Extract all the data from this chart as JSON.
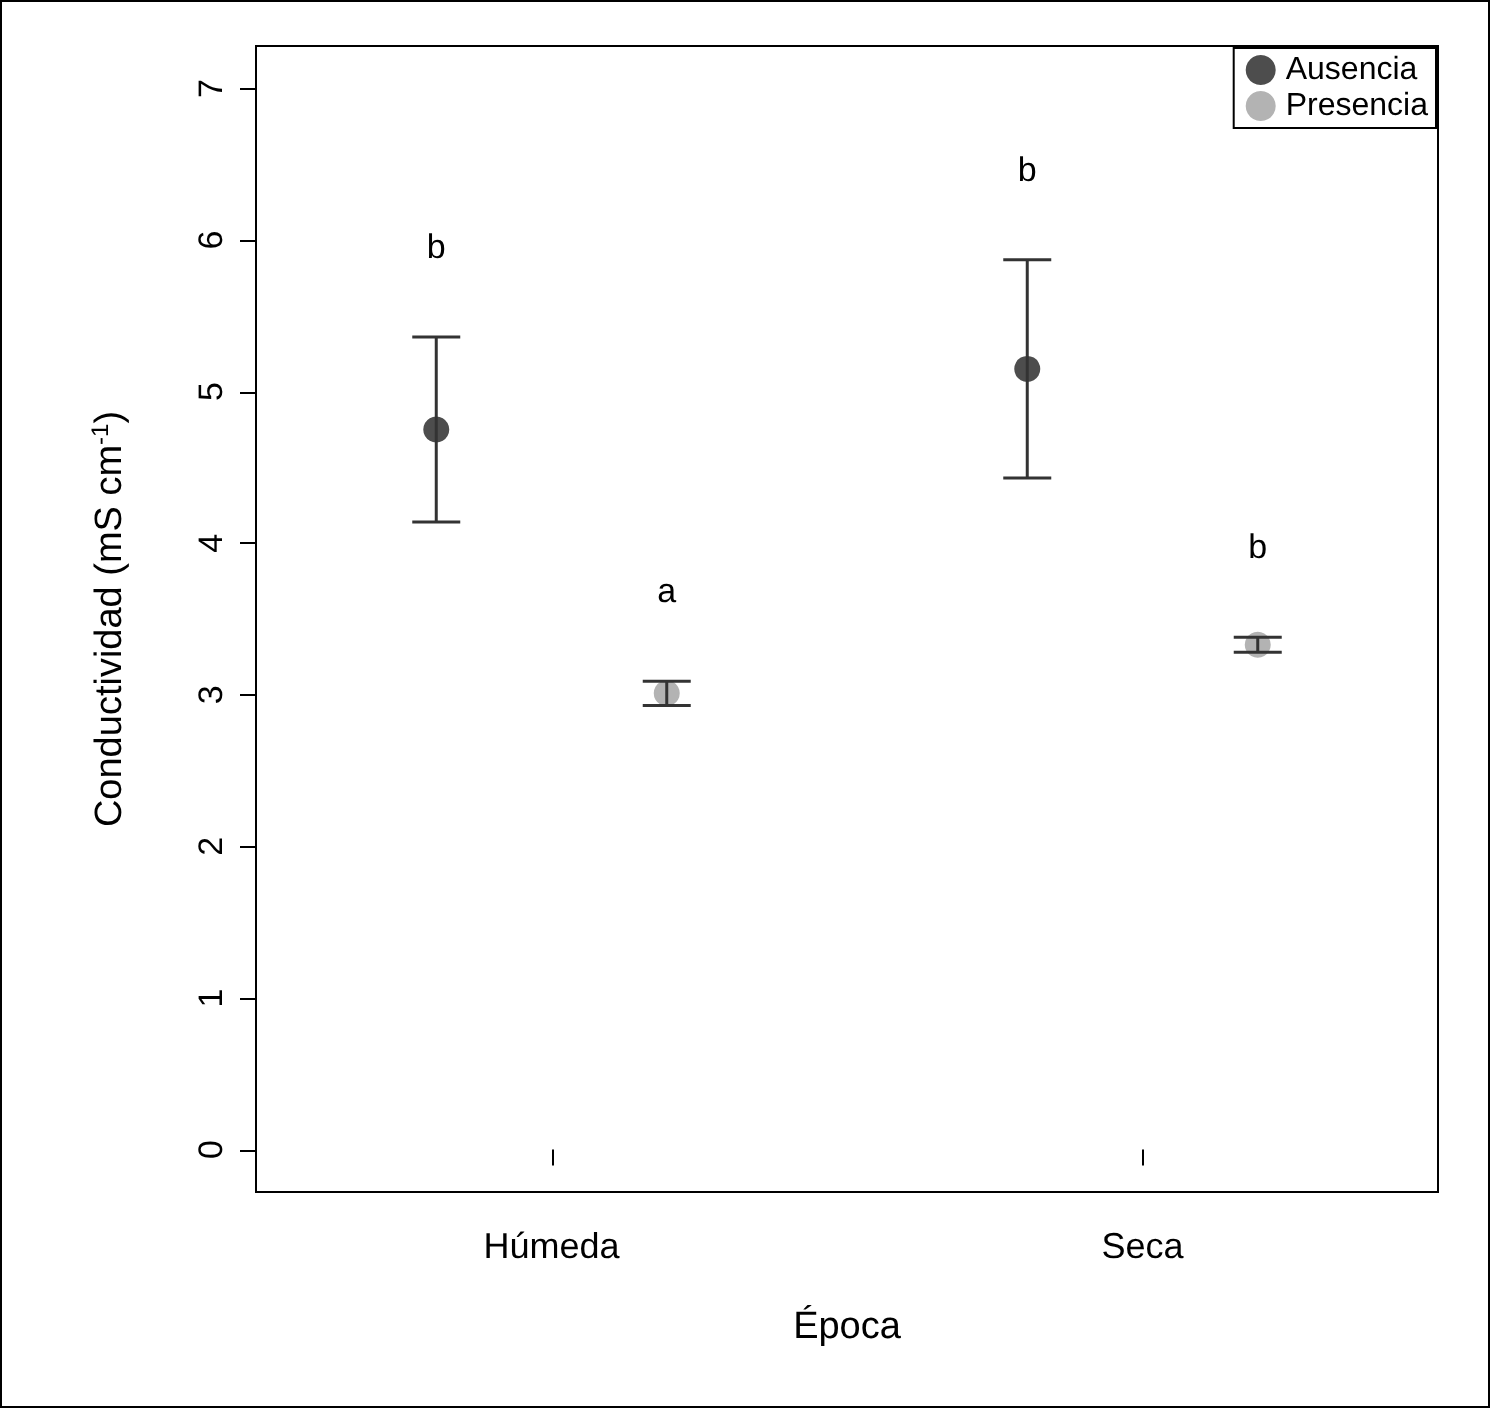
{
  "chart_data": {
    "type": "scatter",
    "xlabel": "Época",
    "ylabel": "Conductividad (mS cm$^{-1}$)",
    "categories": [
      "Húmeda",
      "Seca"
    ],
    "series": [
      {
        "name": "Ausencia",
        "color": "#4d4d4d",
        "values": [
          4.75,
          5.15
        ],
        "errors": [
          0.61,
          0.72
        ]
      },
      {
        "name": "Presencia",
        "color": "#b3b3b3",
        "values": [
          3.01,
          3.33
        ],
        "errors": [
          0.08,
          0.05
        ]
      }
    ],
    "ylim": [
      -0.28,
      7.28
    ],
    "yticks": [
      0,
      1,
      2,
      3,
      4,
      5,
      6,
      7
    ],
    "grid": false,
    "legend": "top right",
    "marker": "circle",
    "annotations": [
      "b",
      "a",
      "b",
      "b"
    ]
  }
}
